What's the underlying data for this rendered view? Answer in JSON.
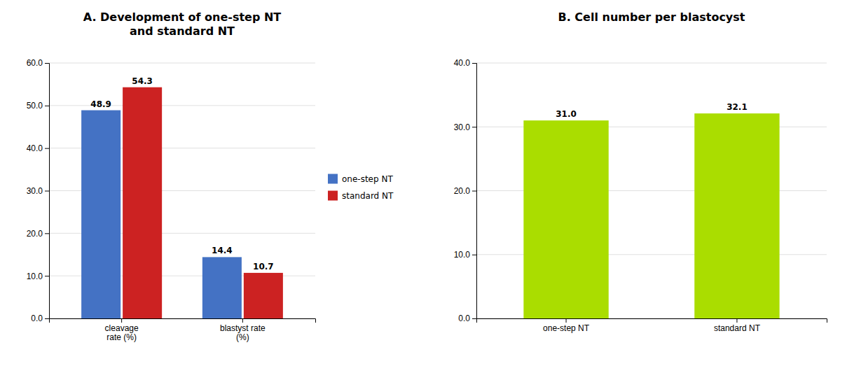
{
  "chart_data": [
    {
      "type": "bar",
      "title": "A. Development of one-step NT\nand standard NT",
      "categories": [
        "cleavage\nrate (%)",
        "blastyst rate\n(%)"
      ],
      "series": [
        {
          "name": "one-step NT",
          "color": "#4472C4",
          "values": [
            48.9,
            14.4
          ]
        },
        {
          "name": "standard NT",
          "color": "#CC2222",
          "values": [
            54.3,
            10.7
          ]
        }
      ],
      "ylim": [
        0,
        60
      ],
      "yticks": [
        {
          "value": 0,
          "label": "0.0"
        },
        {
          "value": 10.0,
          "label": "10.0"
        },
        {
          "value": 20.0,
          "label": "20.0"
        },
        {
          "value": 30.0,
          "label": "30.0"
        },
        {
          "value": 40.0,
          "label": "40.0"
        },
        {
          "value": 50.0,
          "label": "50.0"
        },
        {
          "value": 60.0,
          "label": "60.0"
        }
      ],
      "grid": true,
      "legend": "right",
      "data_labels": true
    },
    {
      "type": "bar",
      "title": "B. Cell number per blastocyst",
      "categories": [
        "one-step NT",
        "standard NT"
      ],
      "values": [
        31.0,
        32.1
      ],
      "value_labels": [
        "31.0",
        "32.1"
      ],
      "color": "#AADD00",
      "ylim": [
        0,
        40
      ],
      "yticks": [
        {
          "value": 0,
          "label": "0.0"
        },
        {
          "value": 10.0,
          "label": "10.0"
        },
        {
          "value": 20.0,
          "label": "20.0"
        },
        {
          "value": 30.0,
          "label": "30.0"
        },
        {
          "value": 40.0,
          "label": "40.0"
        }
      ],
      "grid": true,
      "data_labels": true
    }
  ]
}
